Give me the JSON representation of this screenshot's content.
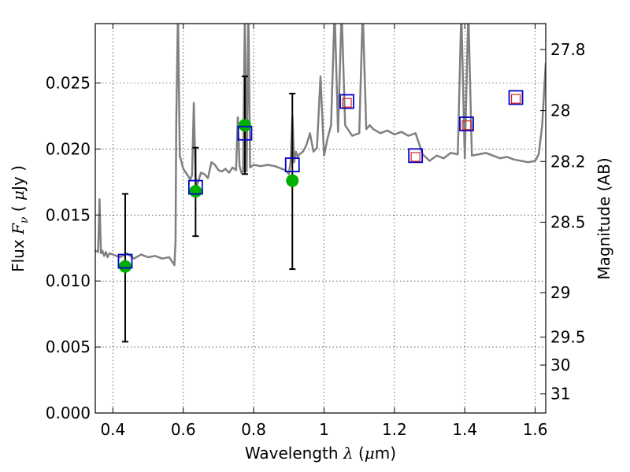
{
  "chart_data": {
    "type": "scatter",
    "xlabel_text": "Wavelength",
    "xlabel_symbol": "λ",
    "xlabel_unit_open": "(",
    "xlabel_unit_mu": "μ",
    "xlabel_unit_rest": "m)",
    "ylabel_text": "Flux",
    "ylabel_symbol": "F",
    "ylabel_sub": "ν",
    "ylabel_unit_open": "(",
    "ylabel_unit_mu": "μ",
    "ylabel_unit_rest": "Jy )",
    "y2label": "Magnitude (AB)",
    "xlim": [
      0.35,
      1.63
    ],
    "ylim": [
      0.0,
      0.0295
    ],
    "grid": true,
    "x_ticks": [
      0.4,
      0.6,
      0.8,
      1.0,
      1.2,
      1.4,
      1.6
    ],
    "x_tick_labels": [
      "0.4",
      "0.6",
      "0.8",
      "1",
      "1.2",
      "1.4",
      "1.6"
    ],
    "y_ticks": [
      0.0,
      0.005,
      0.01,
      0.015,
      0.02,
      0.025
    ],
    "y_tick_labels": [
      "0.000",
      "0.005",
      "0.010",
      "0.015",
      "0.020",
      "0.025"
    ],
    "y2_tick_labels": [
      "27.8",
      "28",
      "28.2",
      "28.5",
      "29",
      "29.5",
      "30",
      "31"
    ],
    "y2_tick_values": [
      27.8,
      28.0,
      28.2,
      28.5,
      29.0,
      29.5,
      30.0,
      31.0
    ],
    "y2_zero_point_uJy": 3631000000,
    "series": [
      {
        "kind": "line",
        "color": "#808080",
        "x": [
          0.35,
          0.358,
          0.362,
          0.366,
          0.37,
          0.375,
          0.38,
          0.385,
          0.39,
          0.4,
          0.42,
          0.44,
          0.46,
          0.48,
          0.5,
          0.52,
          0.54,
          0.56,
          0.575,
          0.578,
          0.58,
          0.585,
          0.59,
          0.6,
          0.62,
          0.625,
          0.63,
          0.635,
          0.64,
          0.65,
          0.66,
          0.67,
          0.68,
          0.69,
          0.7,
          0.71,
          0.72,
          0.73,
          0.74,
          0.75,
          0.755,
          0.76,
          0.765,
          0.77,
          0.775,
          0.78,
          0.785,
          0.79,
          0.8,
          0.82,
          0.84,
          0.86,
          0.88,
          0.89,
          0.9,
          0.905,
          0.91,
          0.915,
          0.92,
          0.925,
          0.93,
          0.94,
          0.95,
          0.96,
          0.97,
          0.98,
          0.99,
          1.0,
          1.01,
          1.02,
          1.03,
          1.04,
          1.05,
          1.06,
          1.08,
          1.1,
          1.11,
          1.12,
          1.13,
          1.14,
          1.16,
          1.18,
          1.2,
          1.22,
          1.24,
          1.26,
          1.28,
          1.3,
          1.32,
          1.34,
          1.36,
          1.38,
          1.39,
          1.4,
          1.41,
          1.42,
          1.44,
          1.46,
          1.48,
          1.5,
          1.52,
          1.54,
          1.56,
          1.58,
          1.6,
          1.61,
          1.62,
          1.63
        ],
        "y": [
          0.0123,
          0.0122,
          0.0162,
          0.0121,
          0.0123,
          0.0119,
          0.0122,
          0.0118,
          0.0121,
          0.012,
          0.0118,
          0.0121,
          0.0117,
          0.012,
          0.0118,
          0.0119,
          0.0117,
          0.0118,
          0.0112,
          0.013,
          0.022,
          0.0305,
          0.0195,
          0.0185,
          0.0177,
          0.018,
          0.0235,
          0.0178,
          0.0173,
          0.0182,
          0.0181,
          0.0178,
          0.019,
          0.0188,
          0.0184,
          0.0183,
          0.0185,
          0.0182,
          0.0186,
          0.0184,
          0.0224,
          0.0187,
          0.0182,
          0.0183,
          0.03,
          0.0183,
          0.0305,
          0.0186,
          0.0188,
          0.0187,
          0.0188,
          0.0187,
          0.0185,
          0.0184,
          0.0181,
          0.019,
          0.0225,
          0.019,
          0.0198,
          0.0194,
          0.0196,
          0.0198,
          0.0203,
          0.0212,
          0.0198,
          0.0201,
          0.0255,
          0.0195,
          0.0208,
          0.0218,
          0.0305,
          0.0213,
          0.0305,
          0.0218,
          0.021,
          0.0212,
          0.0305,
          0.0215,
          0.0218,
          0.0215,
          0.0212,
          0.0214,
          0.0211,
          0.0213,
          0.021,
          0.0212,
          0.0196,
          0.0191,
          0.0195,
          0.0193,
          0.0197,
          0.0196,
          0.0305,
          0.0193,
          0.0305,
          0.0195,
          0.0196,
          0.0197,
          0.0195,
          0.0193,
          0.0194,
          0.0192,
          0.0191,
          0.019,
          0.0191,
          0.0196,
          0.0218,
          0.0265
        ]
      },
      {
        "kind": "errorbar",
        "color": "#000000",
        "x": [
          0.435,
          0.635,
          0.775,
          0.91
        ],
        "ylow": [
          0.0054,
          0.0134,
          0.0181,
          0.0109
        ],
        "yhigh": [
          0.0166,
          0.0201,
          0.0255,
          0.0242
        ]
      },
      {
        "kind": "circles",
        "color": "#00b000",
        "x": [
          0.435,
          0.635,
          0.775,
          0.91
        ],
        "y": [
          0.0111,
          0.0168,
          0.0218,
          0.0176
        ]
      },
      {
        "kind": "squares",
        "color": "#0000cc",
        "x": [
          0.435,
          0.635,
          0.775,
          0.91,
          1.065,
          1.26,
          1.405,
          1.545
        ],
        "y": [
          0.0115,
          0.0171,
          0.0212,
          0.0188,
          0.0236,
          0.0195,
          0.0219,
          0.0239
        ]
      },
      {
        "kind": "small_squares",
        "color": "#dd2222",
        "x": [
          1.065,
          1.26,
          1.405,
          1.545
        ],
        "y": [
          0.0235,
          0.0194,
          0.0218,
          0.0238
        ]
      }
    ]
  }
}
